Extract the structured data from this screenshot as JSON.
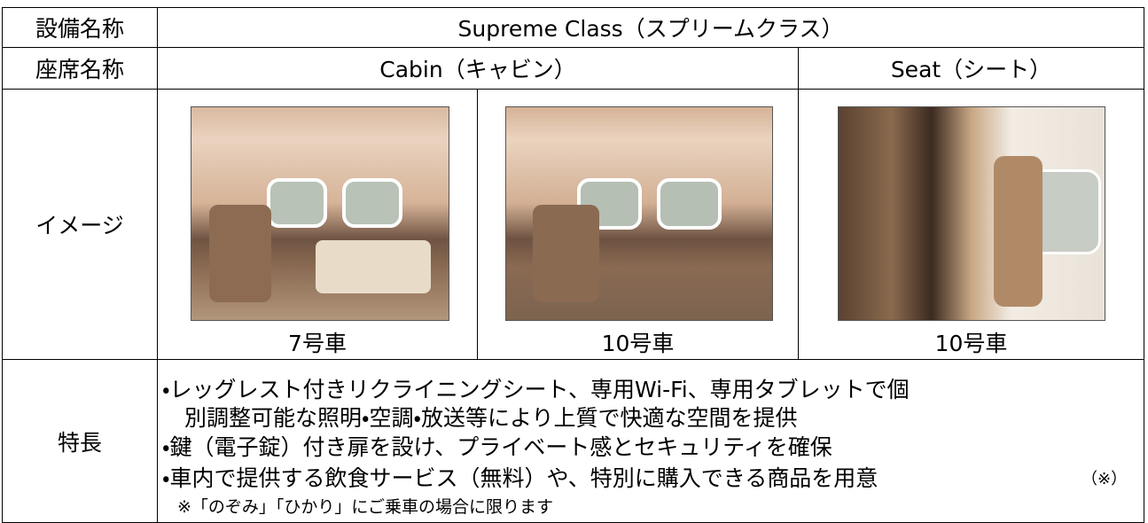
{
  "table": {
    "facility": {
      "label": "設備名称",
      "value": "Supreme Class（スプリームクラス）"
    },
    "seat_name": {
      "label": "座席名称",
      "cabin": "Cabin（キャビン）",
      "seat": "Seat（シート）"
    },
    "image": {
      "label": "イメージ",
      "captions": [
        "7号車",
        "10号車",
        "10号車"
      ]
    },
    "features": {
      "label": "特長",
      "lines": [
        "・レッグレスト付きリクライニングシート、専用Wi-Fi、専用タブレットで個",
        "別調整可能な照明・空調・放送等により上質で快適な空間を提供",
        "・鍵（電子錠）付き扉を設け、プライベート感とセキュリティを確保",
        "・車内で提供する飲食サービス（無料）や、特別に購入できる商品を用意"
      ],
      "mark": "（※）",
      "note": "※「のぞみ」「ひかり」にご乗車の場合に限ります"
    }
  }
}
